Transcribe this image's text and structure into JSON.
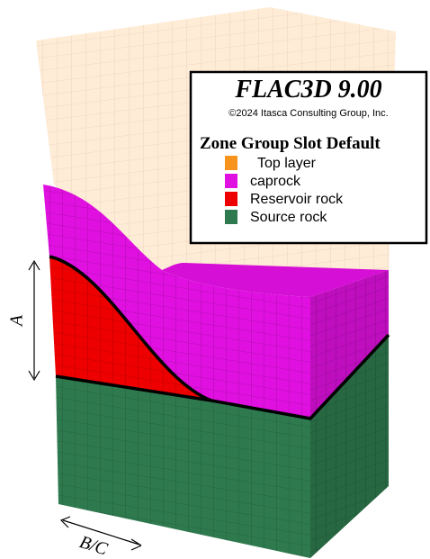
{
  "legend": {
    "title": "FLAC3D 9.00",
    "copyright": "©2024 Itasca Consulting Group, Inc.",
    "heading": "Zone Group Slot Default",
    "items": [
      {
        "label": "Top layer",
        "color": "#f7941d"
      },
      {
        "label": "caprock",
        "color": "#e010e0"
      },
      {
        "label": "Reservoir rock",
        "color": "#ee0000"
      },
      {
        "label": "Source rock",
        "color": "#2e7a4e"
      }
    ]
  },
  "annotations": {
    "a": "A",
    "bc": "B/C"
  }
}
